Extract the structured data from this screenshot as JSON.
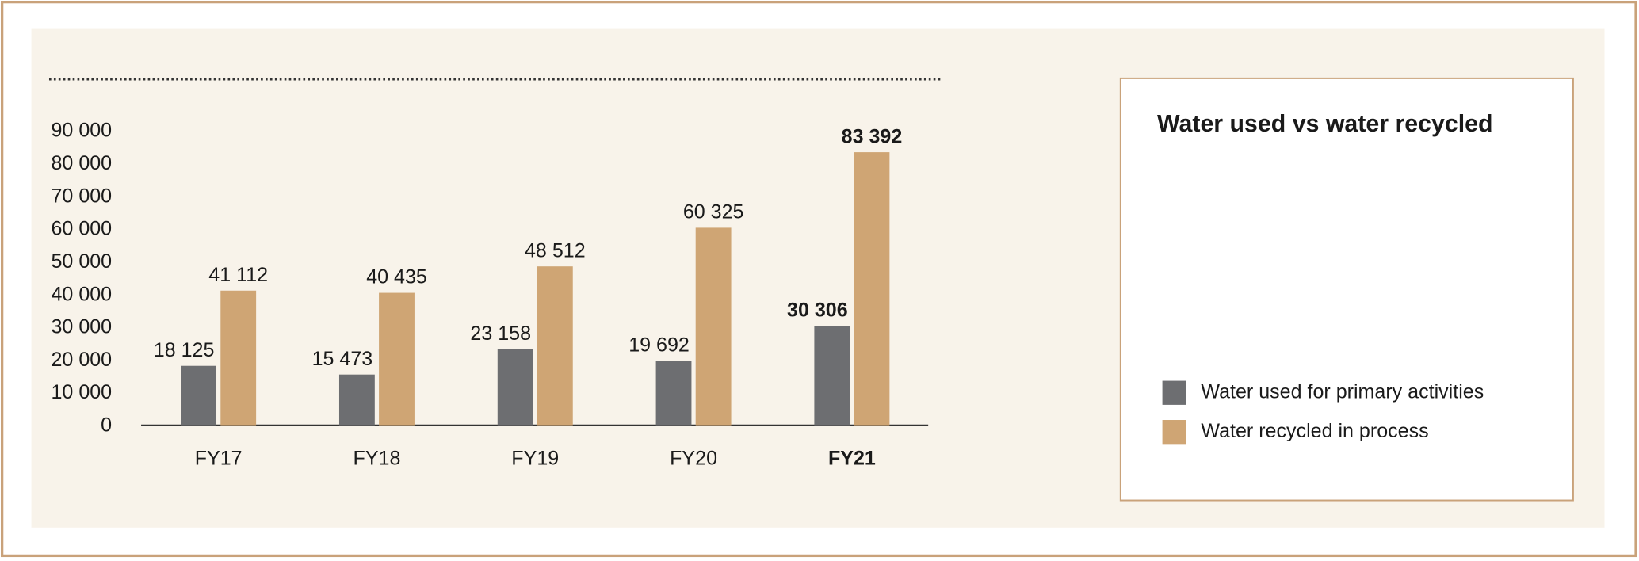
{
  "chart_data": {
    "type": "bar",
    "title": "Water used vs water recycled",
    "categories": [
      "FY17",
      "FY18",
      "FY19",
      "FY20",
      "FY21"
    ],
    "series": [
      {
        "name": "Water used for primary activities",
        "color": "#6d6e71",
        "values": [
          18125,
          15473,
          23158,
          19692,
          30306
        ],
        "value_labels": [
          "18 125",
          "15 473",
          "23 158",
          "19 692",
          "30 306"
        ]
      },
      {
        "name": "Water recycled in process",
        "color": "#cfa574",
        "values": [
          41112,
          40435,
          48512,
          60325,
          83392
        ],
        "value_labels": [
          "41 112",
          "40 435",
          "48 512",
          "60 325",
          "83 392"
        ]
      }
    ],
    "ylim": [
      0,
      90000
    ],
    "yticks": [
      0,
      {
        "value": 10000,
        "label": "10 000"
      },
      {
        "value": 20000,
        "label": "20 000"
      },
      {
        "value": 30000,
        "label": "30 000"
      },
      {
        "value": 40000,
        "label": "40 000"
      },
      {
        "value": 50000,
        "label": "50 000"
      },
      {
        "value": 60000,
        "label": "60 000"
      },
      {
        "value": 70000,
        "label": "70 000"
      },
      {
        "value": 80000,
        "label": "80 000"
      },
      {
        "value": 90000,
        "label": "90 000"
      }
    ],
    "grid": false,
    "highlight": {
      "category_index": 4,
      "color": "#c9a06c"
    }
  }
}
